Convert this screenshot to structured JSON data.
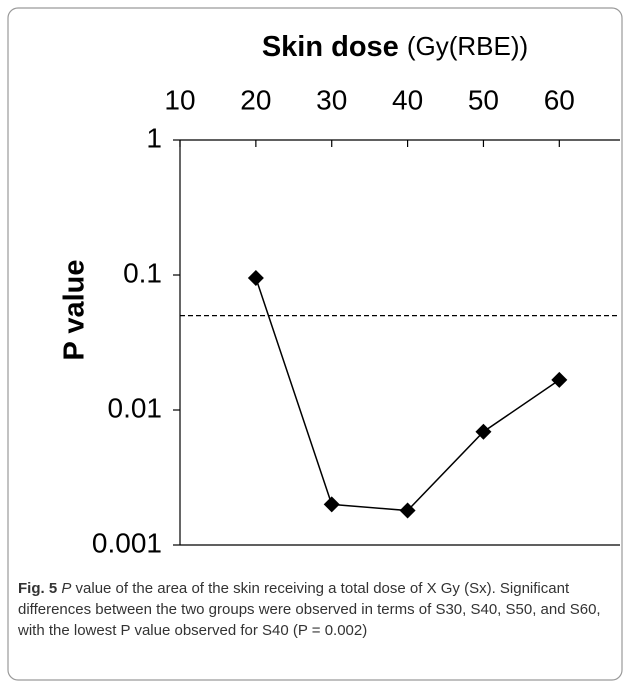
{
  "chart_data": {
    "type": "line",
    "title": "Skin dose",
    "title_unit": "(Gy(RBE))",
    "y_label": "P value",
    "x": [
      20,
      30,
      40,
      50,
      60
    ],
    "series": [
      {
        "name": "P value",
        "color": "#000000",
        "values": [
          0.095,
          0.002,
          0.0018,
          0.0069,
          0.0167
        ]
      }
    ],
    "xlim": [
      10,
      68
    ],
    "xticks": [
      10,
      20,
      30,
      40,
      50,
      60
    ],
    "ylim": [
      0.001,
      1
    ],
    "yticks": [
      1,
      0.1,
      0.01,
      0.001
    ],
    "ylog": true,
    "x_axis_position": "top",
    "reference_line": {
      "value": 0.05,
      "style": "dashed",
      "color": "#000000"
    },
    "caption": {
      "label": "Fig. 5",
      "italic": "P",
      "text": " value of the area of the skin receiving a total dose of X Gy (Sx). Significant differences between the two groups were observed in terms of S30, S40, S50, and S60, with the lowest P value observed for S40 (P = 0.002)"
    }
  }
}
